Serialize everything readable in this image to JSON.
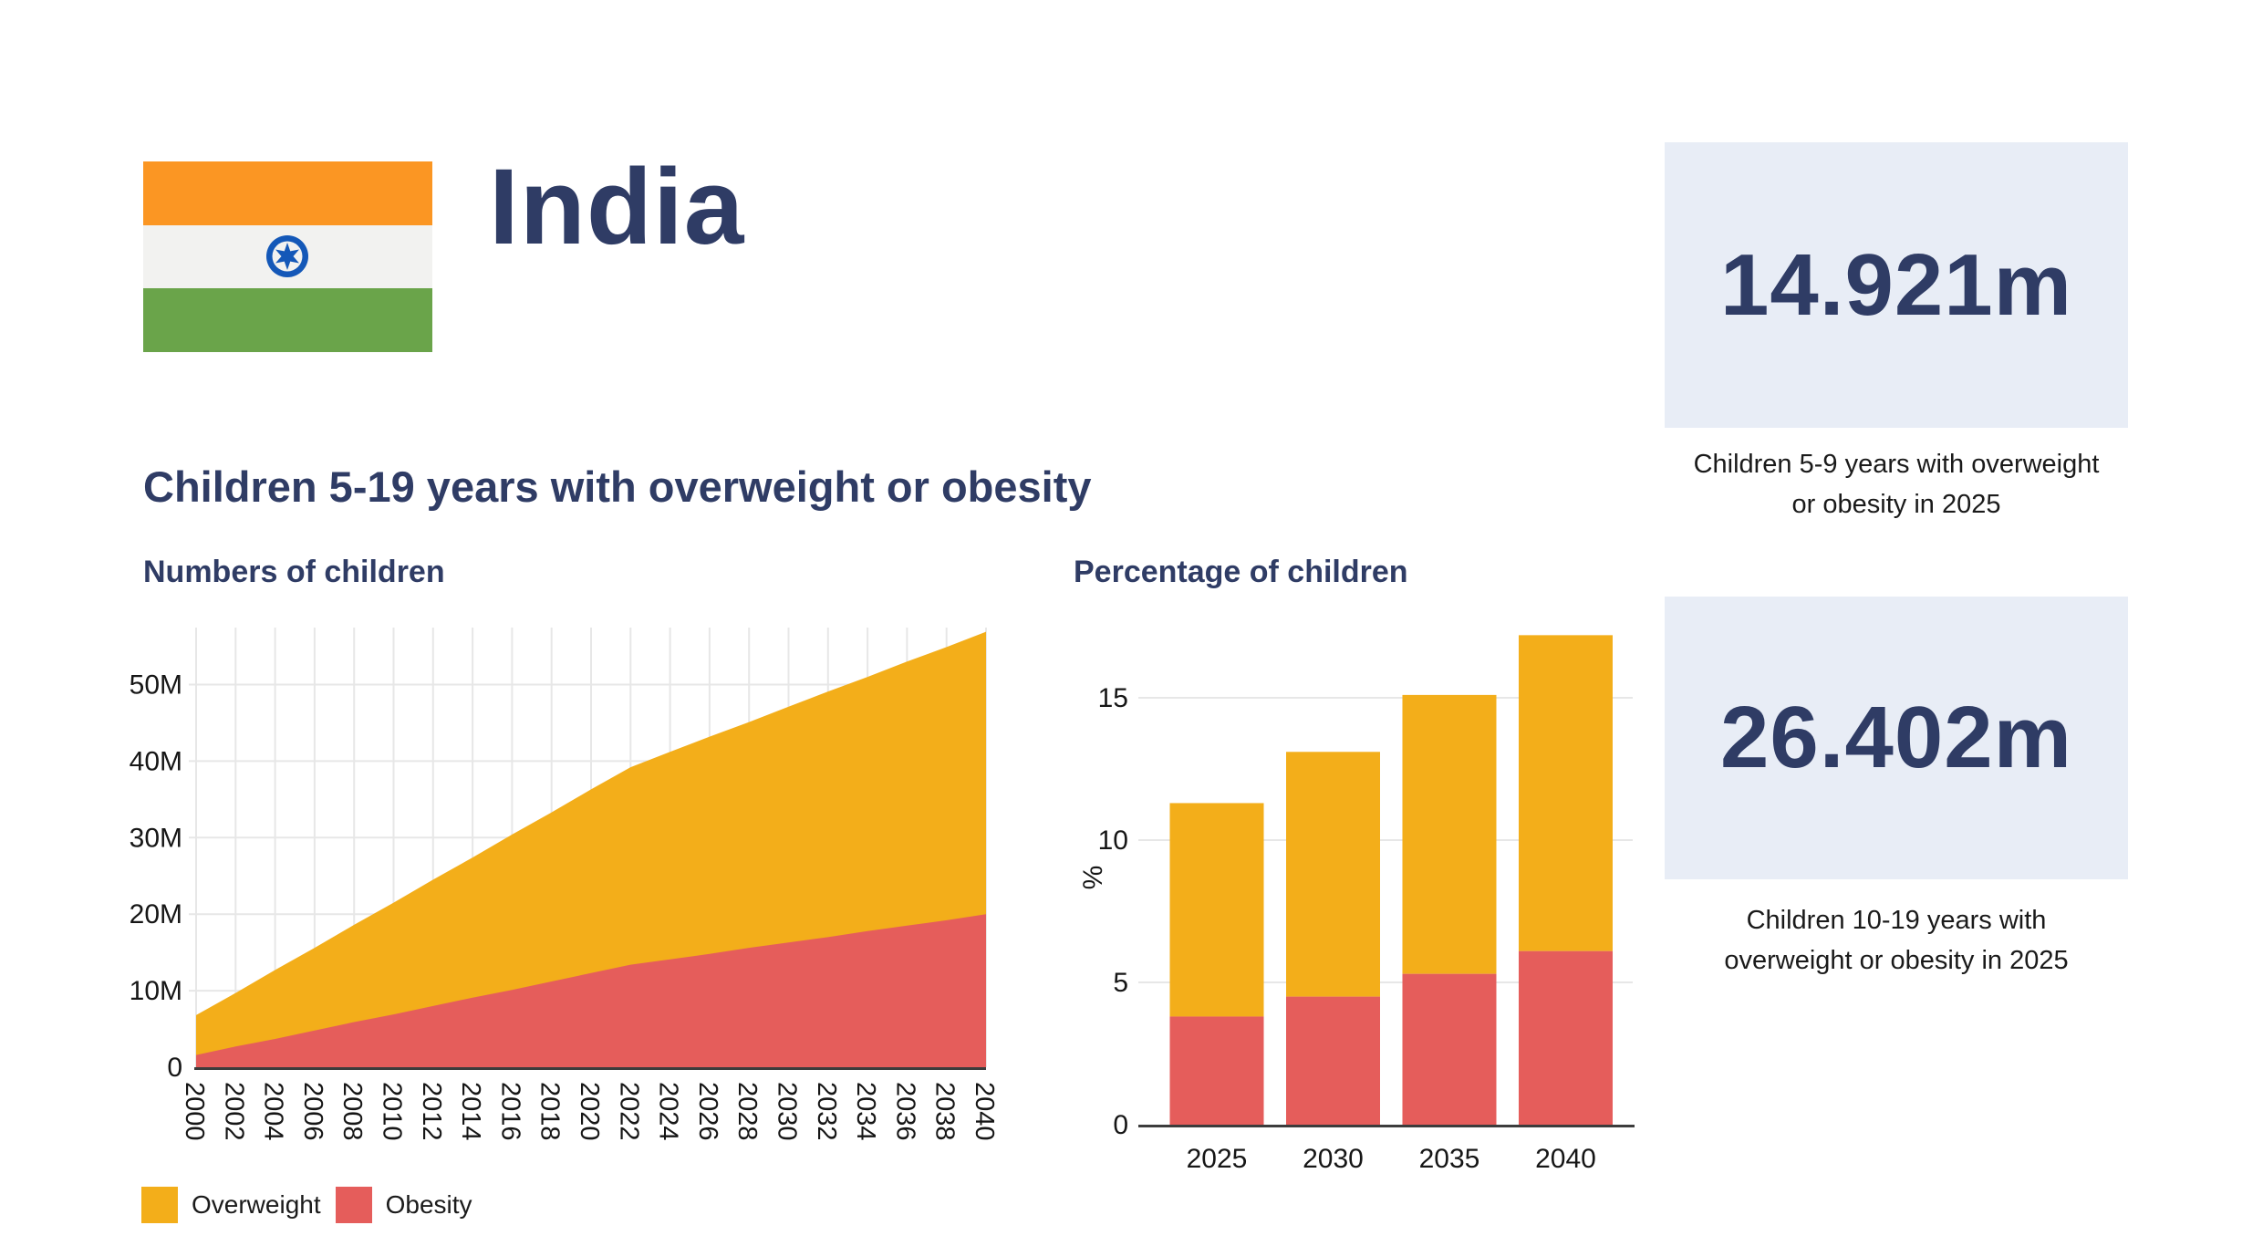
{
  "header": {
    "title": "India",
    "flag": {
      "name": "india-flag",
      "saffron": "#FB9623",
      "white": "#F2F2F0",
      "green": "#6AA44A",
      "chakra_blue": "#1458B8"
    }
  },
  "heading": "Children 5-19 years with overweight or obesity",
  "colors": {
    "navy": "#2F3C65",
    "overweight": "#F3AE1A",
    "obesity": "#E55D5B",
    "grid": "#E7E7E7",
    "axis": "#3C3C3C",
    "tick_text": "#161616",
    "card_bg": "#E8EDF6"
  },
  "legend": {
    "items": [
      {
        "label": "Overweight",
        "color_key": "overweight"
      },
      {
        "label": "Obesity",
        "color_key": "obesity"
      }
    ]
  },
  "chart_data": [
    {
      "type": "area",
      "stacking": "stacked",
      "title": "Numbers of children",
      "x": [
        2000,
        2002,
        2004,
        2006,
        2008,
        2010,
        2012,
        2014,
        2016,
        2018,
        2020,
        2022,
        2024,
        2026,
        2028,
        2030,
        2032,
        2034,
        2036,
        2038,
        2040
      ],
      "series": [
        {
          "name": "Overweight",
          "color": "#F3AE1A",
          "values": [
            5.2,
            7.0,
            9.0,
            10.8,
            12.7,
            14.6,
            16.5,
            18.3,
            20.3,
            22.1,
            24.0,
            25.8,
            27.1,
            28.4,
            29.5,
            30.8,
            32.1,
            33.2,
            34.5,
            35.7,
            36.9
          ]
        },
        {
          "name": "Obesity",
          "color": "#E55D5B",
          "values": [
            1.6,
            2.7,
            3.7,
            4.8,
            5.9,
            6.9,
            8.0,
            9.1,
            10.1,
            11.2,
            12.3,
            13.4,
            14.1,
            14.8,
            15.6,
            16.3,
            17.0,
            17.8,
            18.5,
            19.2,
            20.0
          ]
        }
      ],
      "unit": "millions",
      "ylabel": "",
      "ylim": [
        0,
        57.5
      ],
      "y_ticks": [
        0,
        10,
        20,
        30,
        40,
        50
      ],
      "y_tick_labels": [
        "0",
        "10M",
        "20M",
        "30M",
        "40M",
        "50M"
      ],
      "grid": true,
      "legend_position": "bottom"
    },
    {
      "type": "bar",
      "stacking": "stacked",
      "title": "Percentage of children",
      "categories": [
        "2025",
        "2030",
        "2035",
        "2040"
      ],
      "series": [
        {
          "name": "Obesity",
          "color": "#E55D5B",
          "values": [
            3.8,
            4.5,
            5.3,
            6.1
          ]
        },
        {
          "name": "Overweight",
          "color": "#F3AE1A",
          "values": [
            7.5,
            8.6,
            9.8,
            11.1
          ]
        }
      ],
      "totals": [
        11.3,
        13.1,
        15.1,
        17.2
      ],
      "ylabel": "%",
      "ylim": [
        0,
        17.5
      ],
      "y_ticks": [
        0,
        5,
        10,
        15
      ],
      "y_tick_labels": [
        "0",
        "5",
        "10",
        "15"
      ],
      "grid": true
    }
  ],
  "stats": [
    {
      "value": "14.921m",
      "caption_lines": [
        "Children 5-9 years with overweight",
        "or obesity in 2025"
      ]
    },
    {
      "value": "26.402m",
      "caption_lines": [
        "Children 10-19 years with",
        "overweight or obesity in 2025"
      ]
    }
  ]
}
